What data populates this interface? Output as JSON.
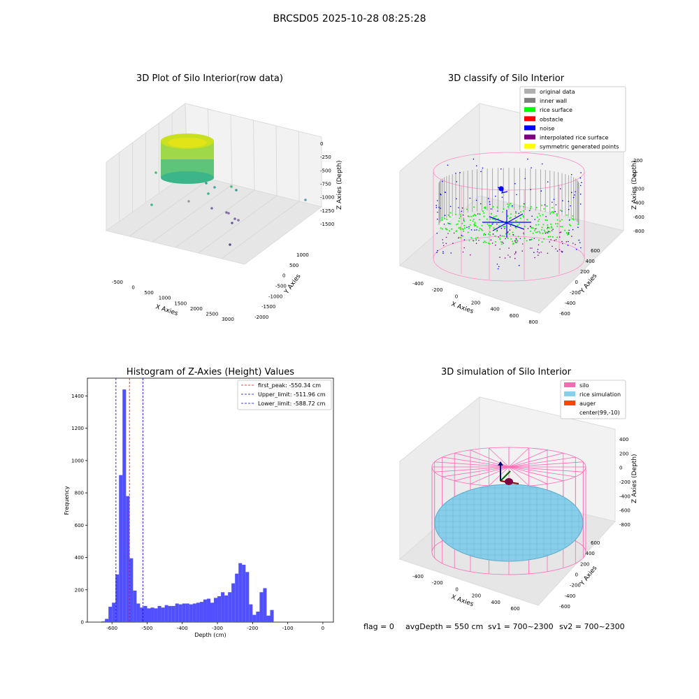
{
  "suptitle": "BRCSD05 2025-10-28 08:25:28",
  "footer": {
    "flag": "flag = 0",
    "avg_depth": "avgDepth = 550 cm",
    "sv1": "sv1 = 700~2300",
    "sv2": "sv2 = 700~2300"
  },
  "colors": {
    "hist_bar": "#5050ff",
    "first_peak_line": "#ff0000",
    "limit_line": "#0000cc",
    "silo": "#ff69b4",
    "rice": "#87ceeb",
    "auger": "#ff4500",
    "inner_wall": "#808080",
    "rice_surface": "#00ff00",
    "noise": "#0000ff",
    "obstacle": "#ff0000",
    "interpolated": "#800080",
    "symmetric": "#ffff00",
    "original": "#b0b0b0"
  },
  "chart_data": [
    {
      "type": "scatter",
      "title": "3D Plot of Silo Interior(row data)",
      "xlabel": "X Axies",
      "ylabel": "Y Axies",
      "zlabel": "Z Axies (Depth)",
      "x_ticks": [
        "-500",
        "0",
        "500",
        "1000",
        "1500",
        "2000",
        "2500",
        "3000"
      ],
      "y_ticks": [
        "1000",
        "500",
        "0",
        "-500",
        "-1000",
        "-1500",
        "-2000"
      ],
      "z_ticks": [
        "0",
        "-250",
        "-500",
        "-750",
        "-1000",
        "-1250",
        "-1500"
      ]
    },
    {
      "type": "scatter",
      "title": "3D classify of Silo Interior",
      "xlabel": "X Axies",
      "ylabel": "Y Axies",
      "zlabel": "Z Axies (Depth)",
      "x_ticks": [
        "-400",
        "-200",
        "0",
        "200",
        "400",
        "600",
        "800"
      ],
      "y_ticks": [
        "600",
        "400",
        "200",
        "0",
        "-200",
        "-400",
        "-600"
      ],
      "z_ticks": [
        "200",
        "0",
        "-200",
        "-400",
        "-600",
        "-800"
      ],
      "legend": [
        "original data",
        "inner wall",
        "rice surface",
        "obstacle",
        "noise",
        "interpolated rice surface",
        "symmetric generated points"
      ],
      "legend_position": "top-right"
    },
    {
      "type": "bar",
      "title": "Histogram of Z-Axies (Height) Values",
      "xlabel": "Depth (cm)",
      "ylabel": "Frequency",
      "xlim": [
        -670,
        30
      ],
      "ylim": [
        0,
        1510
      ],
      "x_ticks": [
        -600,
        -500,
        -400,
        -300,
        -200,
        -100,
        0
      ],
      "y_ticks": [
        0,
        200,
        400,
        600,
        800,
        1000,
        1200,
        1400
      ],
      "bin_start": -630,
      "bin_width": 10,
      "values": [
        5,
        20,
        95,
        120,
        295,
        910,
        1440,
        780,
        395,
        195,
        115,
        90,
        100,
        85,
        90,
        85,
        100,
        90,
        105,
        100,
        100,
        115,
        110,
        115,
        115,
        110,
        115,
        120,
        125,
        140,
        145,
        120,
        150,
        160,
        185,
        165,
        185,
        240,
        300,
        365,
        355,
        310,
        110,
        45,
        65,
        185,
        210,
        40,
        75
      ],
      "lines": [
        {
          "label": "first_peak: -550.34 cm",
          "x": -550.34,
          "color": "#ff0000"
        },
        {
          "label": "Upper_limit: -511.96 cm",
          "x": -511.96,
          "color": "#0000cc"
        },
        {
          "label": "Lower_limit: -588.72 cm",
          "x": -588.72,
          "color": "#0000cc"
        }
      ],
      "legend_position": "top-right"
    },
    {
      "type": "scatter",
      "title": "3D simulation of Silo Interior",
      "xlabel": "X Axies",
      "ylabel": "Y Axies",
      "zlabel": "Z Axies (Depth)",
      "x_ticks": [
        "-400",
        "-200",
        "0",
        "200",
        "400",
        "600"
      ],
      "y_ticks": [
        "600",
        "400",
        "200",
        "0",
        "-200",
        "-400",
        "-600"
      ],
      "z_ticks": [
        "400",
        "200",
        "0",
        "-200",
        "-400",
        "-600",
        "-800"
      ],
      "legend": [
        "silo",
        "rice simulation",
        "auger",
        "center(99,-10)"
      ],
      "legend_position": "top-right"
    }
  ]
}
